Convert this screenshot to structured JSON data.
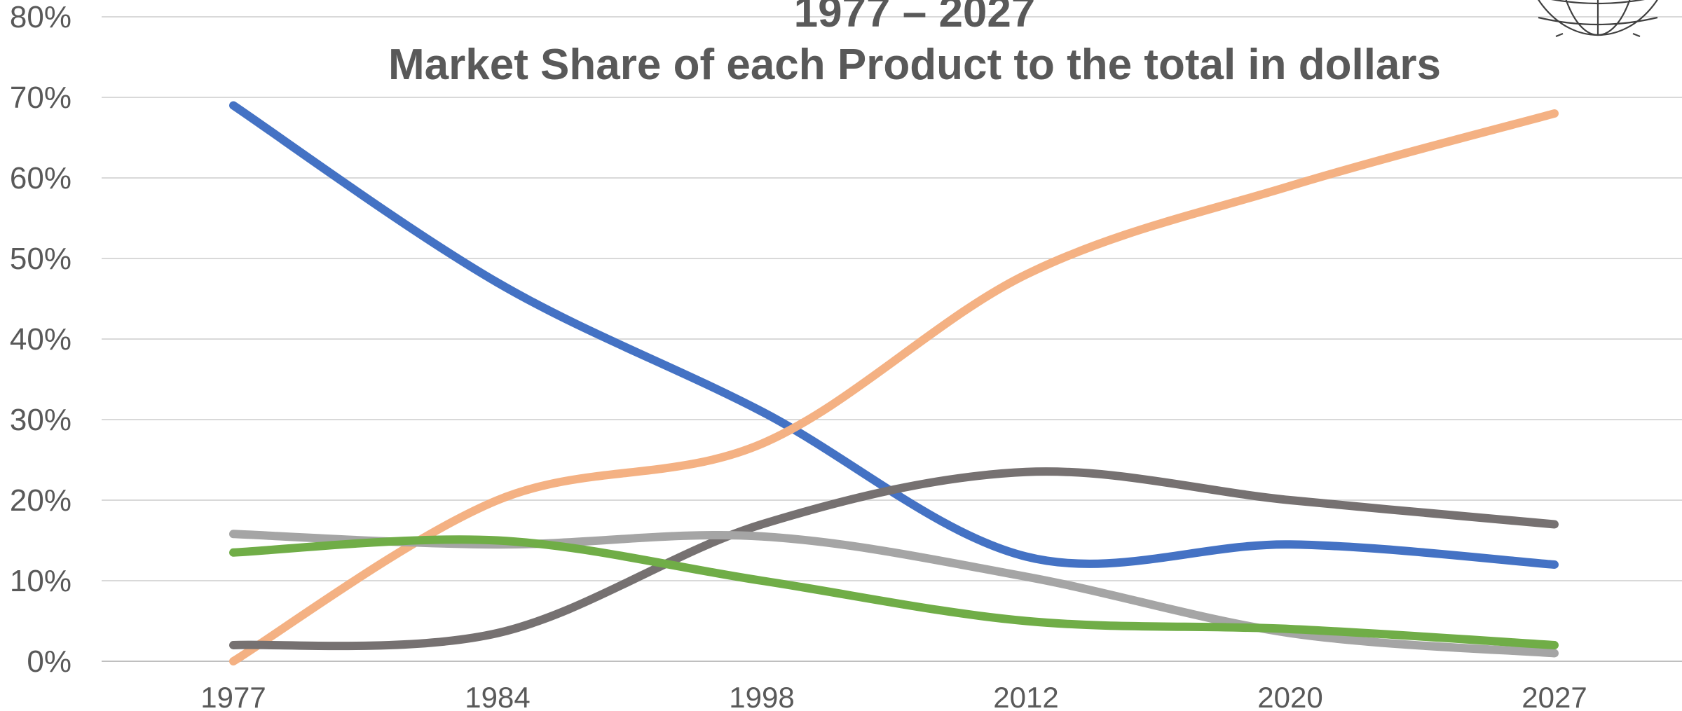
{
  "chart_data": {
    "type": "line",
    "title_line1": "1977 – 2027",
    "title_line2": "Market Share of each Product to the total in dollars",
    "categories": [
      "1977",
      "1984",
      "1998",
      "2012",
      "2020",
      "2027"
    ],
    "y_tick_labels": [
      "0%",
      "10%",
      "20%",
      "30%",
      "40%",
      "50%",
      "60%",
      "70%",
      "80%"
    ],
    "ylim": [
      0,
      80
    ],
    "y_unit": "%",
    "grid": true,
    "smooth": true,
    "series": [
      {
        "color": "#4472c4",
        "values": [
          69,
          47,
          31,
          13,
          14.5,
          12
        ]
      },
      {
        "color": "#f4b183",
        "values": [
          0,
          20,
          27,
          48,
          59,
          68
        ]
      },
      {
        "color": "#767171",
        "values": [
          2,
          3.5,
          17,
          23.5,
          20,
          17
        ]
      },
      {
        "color": "#a5a5a5",
        "values": [
          15.8,
          14.5,
          15.5,
          10.5,
          3.5,
          1
        ]
      },
      {
        "color": "#70ad47",
        "values": [
          13.5,
          15,
          10,
          5,
          4,
          2
        ]
      }
    ]
  }
}
